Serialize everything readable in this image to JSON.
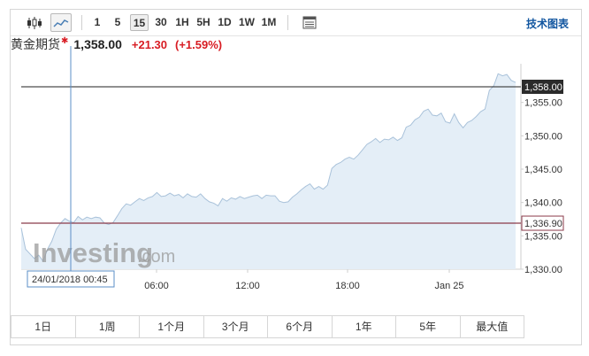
{
  "toolbar": {
    "timeframes": [
      "1",
      "5",
      "15",
      "30",
      "1H",
      "5H",
      "1D",
      "1W",
      "1M"
    ],
    "active_timeframe": "15",
    "tech_chart_link": "技术图表"
  },
  "quote": {
    "name": "黄金期货",
    "price": "1,358.00",
    "change": "+21.30",
    "change_pct": "(+1.59%)"
  },
  "colors": {
    "up": "#d81c23",
    "link": "#1256a0",
    "area_fill": "#e4eef7",
    "line": "#a9c2da"
  },
  "watermark": {
    "brand": "Investing",
    "suffix": ".com"
  },
  "crosshair": {
    "time_label": "24/01/2018 00:45"
  },
  "price_markers": {
    "last": "1,358.00",
    "reference": "1,336.90"
  },
  "range_buttons": [
    "1日",
    "1周",
    "1个月",
    "3个月",
    "6个月",
    "1年",
    "5年",
    "最大值"
  ],
  "chart_data": {
    "type": "area",
    "y_ticks": [
      "1,355.00",
      "1,350.00",
      "1,345.00",
      "1,340.00",
      "1,335.00",
      "1,330.00"
    ],
    "x_ticks": [
      "06:00",
      "12:00",
      "18:00",
      "Jan 25"
    ],
    "ylim": [
      1329,
      1361
    ],
    "last_price": 1358.0,
    "reference_price": 1336.9,
    "series": [
      {
        "values": [
          1336.2,
          1333.0,
          1332.3,
          1331.6,
          1332.1,
          1331.2,
          1333.0,
          1334.2,
          1336.0,
          1336.9,
          1337.6,
          1337.2,
          1337.0,
          1337.9,
          1337.4,
          1337.8,
          1337.6,
          1337.8,
          1337.7,
          1336.9,
          1336.7,
          1337.0,
          1338.0,
          1339.1,
          1339.8,
          1339.6,
          1340.1,
          1340.6,
          1340.3,
          1340.7,
          1340.9,
          1341.5,
          1340.9,
          1341.0,
          1341.4,
          1341.0,
          1341.2,
          1340.7,
          1341.3,
          1340.9,
          1340.8,
          1341.3,
          1340.6,
          1340.1,
          1339.9,
          1339.5,
          1340.6,
          1340.2,
          1340.7,
          1340.5,
          1340.9,
          1340.6,
          1340.8,
          1341.0,
          1341.1,
          1340.6,
          1341.1,
          1341.0,
          1341.0,
          1340.2,
          1340.0,
          1340.1,
          1340.8,
          1341.3,
          1341.9,
          1342.4,
          1342.8,
          1342.0,
          1342.4,
          1342.0,
          1342.6,
          1345.1,
          1345.7,
          1346.0,
          1346.5,
          1346.8,
          1346.5,
          1347.1,
          1347.9,
          1348.7,
          1349.1,
          1349.6,
          1349.0,
          1349.5,
          1349.4,
          1349.8,
          1349.3,
          1349.7,
          1351.3,
          1351.6,
          1352.4,
          1352.8,
          1353.7,
          1354.0,
          1353.1,
          1353.0,
          1353.4,
          1352.1,
          1351.9,
          1353.3,
          1352.0,
          1351.2,
          1352.0,
          1352.3,
          1352.9,
          1353.6,
          1354.0,
          1356.8,
          1357.5,
          1359.3,
          1359.0,
          1359.2,
          1358.3,
          1358.0
        ]
      }
    ]
  }
}
